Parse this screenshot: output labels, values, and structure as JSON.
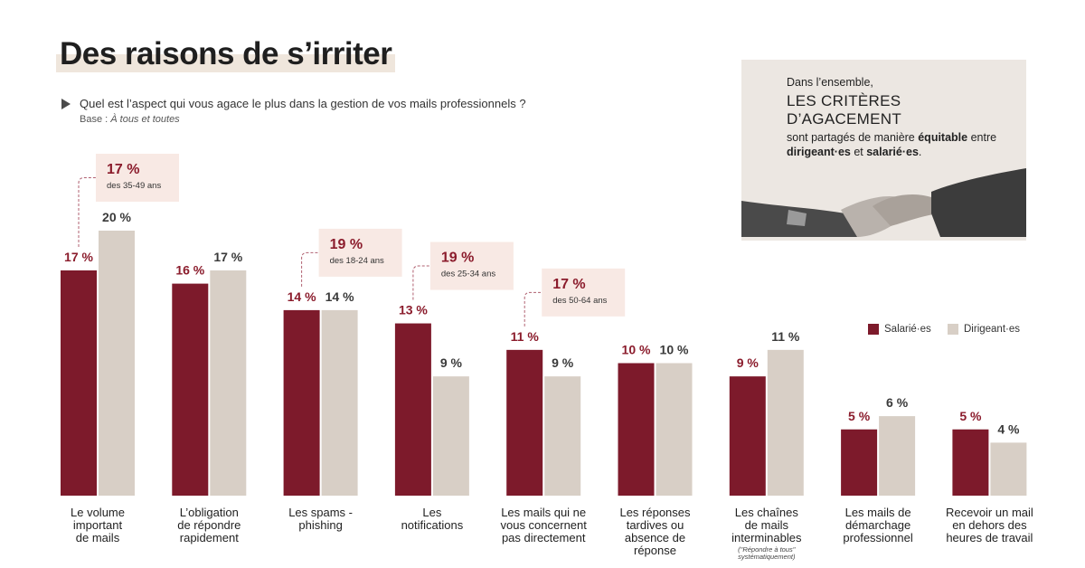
{
  "header": {
    "title": "Des raisons de s’irriter",
    "question": "Quel est l’aspect qui vous agace le plus dans la gestion de vos mails professionnels ?",
    "base_label": "Base :",
    "base": "À tous et toutes"
  },
  "insight": {
    "intro": "Dans l’ensemble,",
    "headline": "LES CRITÈRES D’AGACEMENT",
    "body": [
      {
        "text": "sont partagés de manière ",
        "bold": false
      },
      {
        "text": "équitable",
        "bold": true
      },
      {
        "text": " entre ",
        "bold": false
      },
      {
        "text": "dirigeant·es",
        "bold": true
      },
      {
        "text": " et ",
        "bold": false
      },
      {
        "text": "salarié·es",
        "bold": true
      },
      {
        "text": ".",
        "bold": false
      }
    ]
  },
  "chart_data": {
    "type": "bar",
    "categories": [
      "Le volume\nimportant\nde mails",
      "L’obligation\nde répondre\nrapidement",
      "Les spams -\nphishing",
      "Les\nnotifications",
      "Les mails qui ne\nvous concernent\npas directement",
      "Les réponses\ntardives ou\nabsence de\nréponse",
      "Les chaînes\nde mails\ninterminables",
      "Les mails de\ndémarchage\nprofessionnel",
      "Recevoir un mail\nen dehors des\nheures de travail"
    ],
    "category_notes": [
      null,
      null,
      null,
      null,
      null,
      null,
      "(\"Répondre à tous\"\nsystématiquement)",
      null,
      null
    ],
    "series": [
      {
        "name": "Salarié·es",
        "color": "#7d1a2b",
        "label_color": "#8b1c2c",
        "values": [
          17,
          16,
          14,
          13,
          11,
          10,
          9,
          5,
          5
        ],
        "value_labels": [
          "17 %",
          "16 %",
          "14 %",
          "13 %",
          "11 %",
          "10 %",
          "9 %",
          "5 %",
          "5 %"
        ]
      },
      {
        "name": "Dirigeant·es",
        "color": "#d8cfc6",
        "label_color": "#3a3a3a",
        "values": [
          20,
          17,
          14,
          9,
          9,
          10,
          11,
          6,
          4
        ],
        "value_labels": [
          "20 %",
          "17 %",
          "14 %",
          "9 %",
          "9 %",
          "10 %",
          "11 %",
          "6 %",
          "4 %"
        ]
      }
    ],
    "highlights": [
      {
        "value": 17,
        "label": "17 %",
        "text": "des 35-49 ans"
      },
      null,
      {
        "value": 19,
        "label": "19 %",
        "text": "des 18-24 ans"
      },
      {
        "value": 19,
        "label": "19 %",
        "text": "des 25-34 ans"
      },
      {
        "value": 17,
        "label": "17 %",
        "text": "des 50-64 ans"
      },
      null,
      null,
      null,
      null
    ],
    "ylim": [
      0,
      20
    ],
    "grid": false,
    "legend": "right"
  }
}
